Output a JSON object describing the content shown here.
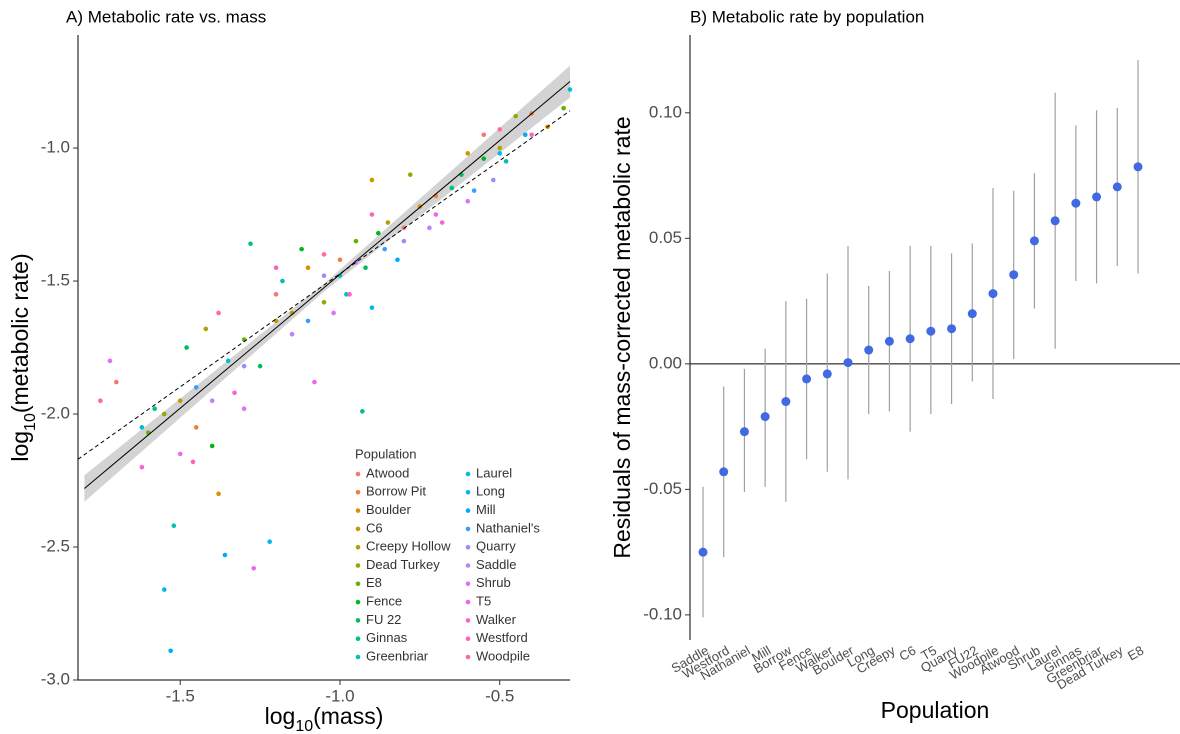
{
  "chart_data": [
    {
      "type": "scatter",
      "title": "A) Metabolic rate vs. mass",
      "xlabel": {
        "base": "log",
        "sub": "10",
        "rest": "(mass)"
      },
      "ylabel": {
        "base": "log",
        "sub": "10",
        "rest": "(metabolic rate)"
      },
      "xlim": [
        -1.82,
        -0.28
      ],
      "ylim": [
        -3.0,
        -0.575
      ],
      "xticks": [
        -1.5,
        {
          "value": -1.0,
          "label": "-1.0"
        },
        -0.5
      ],
      "yticks": [
        {
          "value": -1.0,
          "label": "-1.0"
        },
        -1.5,
        {
          "value": -2.0,
          "label": "-2.0"
        },
        -2.5,
        {
          "value": -3.0,
          "label": "-3.0"
        }
      ],
      "legend_title": "Population",
      "fit_line": {
        "x": [
          -1.8,
          -0.28
        ],
        "y": [
          -2.28,
          -0.75
        ],
        "color": "#000000",
        "dash": false
      },
      "reference_line": {
        "x": [
          -1.82,
          -0.28
        ],
        "y": [
          -2.17,
          -0.86
        ],
        "color": "#000000",
        "dash": true
      },
      "band": {
        "x": [
          -1.8,
          -1.05,
          -0.28
        ],
        "lower": [
          -2.33,
          -1.54,
          -0.81
        ],
        "upper": [
          -2.23,
          -1.51,
          -0.69
        ],
        "color": "#d3d3d3"
      },
      "series": [
        {
          "name": "Atwood",
          "color": "#F8766D",
          "x": [
            -1.7,
            -1.2,
            -0.8,
            -0.55
          ],
          "y": [
            -1.88,
            -1.55,
            -1.3,
            -0.95
          ]
        },
        {
          "name": "Borrow Pit",
          "color": "#EC8239",
          "x": [
            -1.45,
            -1.0,
            -0.7,
            -0.4
          ],
          "y": [
            -2.05,
            -1.42,
            -1.18,
            -0.87
          ]
        },
        {
          "name": "Boulder",
          "color": "#DB8E00",
          "x": [
            -1.38,
            -1.1,
            -0.75,
            -0.35
          ],
          "y": [
            -2.3,
            -1.45,
            -1.22,
            -0.92
          ]
        },
        {
          "name": "C6",
          "color": "#C79800",
          "x": [
            -1.5,
            -1.2,
            -0.9,
            -0.6
          ],
          "y": [
            -1.95,
            -1.65,
            -1.12,
            -1.02
          ]
        },
        {
          "name": "Creepy Hollow",
          "color": "#AEA200",
          "x": [
            -1.42,
            -1.15,
            -0.85,
            -0.5
          ],
          "y": [
            -1.68,
            -1.62,
            -1.28,
            -1.0
          ]
        },
        {
          "name": "Dead Turkey",
          "color": "#8FAA00",
          "x": [
            -1.55,
            -1.05,
            -0.78,
            -0.45
          ],
          "y": [
            -2.0,
            -1.58,
            -1.1,
            -0.88
          ]
        },
        {
          "name": "E8",
          "color": "#64B200",
          "x": [
            -1.6,
            -1.3,
            -0.95,
            -0.3
          ],
          "y": [
            -2.07,
            -1.72,
            -1.35,
            -0.85
          ]
        },
        {
          "name": "Fence",
          "color": "#00B81B",
          "x": [
            -1.4,
            -1.12,
            -0.88,
            -0.55
          ],
          "y": [
            -2.12,
            -1.38,
            -1.32,
            -1.04
          ]
        },
        {
          "name": "FU 22",
          "color": "#00BD5C",
          "x": [
            -1.48,
            -1.25,
            -0.92,
            -0.62
          ],
          "y": [
            -1.75,
            -1.82,
            -1.45,
            -1.1
          ]
        },
        {
          "name": "Ginnas",
          "color": "#00C08B",
          "x": [
            -1.58,
            -1.28,
            -0.93,
            -0.65
          ],
          "y": [
            -1.98,
            -1.36,
            -1.99,
            -1.15
          ]
        },
        {
          "name": "Greenbriar",
          "color": "#00C1B2",
          "x": [
            -1.52,
            -1.18,
            -0.98,
            -0.48
          ],
          "y": [
            -2.42,
            -1.5,
            -1.55,
            -1.05
          ]
        },
        {
          "name": "Laurel",
          "color": "#00BFD5",
          "x": [
            -1.62,
            -1.35,
            -1.0,
            -0.28
          ],
          "y": [
            -2.05,
            -1.8,
            -1.48,
            -0.78
          ]
        },
        {
          "name": "Long",
          "color": "#00B8EF",
          "x": [
            -1.55,
            -1.22,
            -0.9,
            -0.5
          ],
          "y": [
            -2.66,
            -2.48,
            -1.6,
            -1.02
          ]
        },
        {
          "name": "Mill",
          "color": "#00ACFC",
          "x": [
            -1.53,
            -1.36,
            -0.82,
            -0.42
          ],
          "y": [
            -2.89,
            -2.53,
            -1.42,
            -0.95
          ]
        },
        {
          "name": "Nathaniel's",
          "color": "#3A9EFF",
          "x": [
            -1.45,
            -1.1,
            -0.86,
            -0.58
          ],
          "y": [
            -1.9,
            -1.65,
            -1.38,
            -1.16
          ]
        },
        {
          "name": "Quarry",
          "color": "#8F91FF",
          "x": [
            -1.3,
            -1.05,
            -0.8,
            -0.52
          ],
          "y": [
            -1.82,
            -1.48,
            -1.35,
            -1.12
          ]
        },
        {
          "name": "Saddle",
          "color": "#B983FF",
          "x": [
            -1.4,
            -1.15,
            -0.95,
            -0.72
          ],
          "y": [
            -1.95,
            -1.7,
            -1.43,
            -1.3
          ]
        },
        {
          "name": "Shrub",
          "color": "#DB72FB",
          "x": [
            -1.72,
            -1.3,
            -1.02,
            -0.6
          ],
          "y": [
            -1.8,
            -1.98,
            -1.62,
            -1.2
          ]
        },
        {
          "name": "T5",
          "color": "#F066EA",
          "x": [
            -1.5,
            -1.27,
            -1.08,
            -0.7
          ],
          "y": [
            -2.15,
            -2.58,
            -1.88,
            -1.25
          ]
        },
        {
          "name": "Walker",
          "color": "#FC61D3",
          "x": [
            -1.62,
            -1.33,
            -0.97,
            -0.68
          ],
          "y": [
            -2.2,
            -1.92,
            -1.55,
            -1.28
          ]
        },
        {
          "name": "Westford",
          "color": "#FF63B6",
          "x": [
            -1.46,
            -1.2,
            -0.9,
            -0.4
          ],
          "y": [
            -2.18,
            -1.45,
            -1.25,
            -0.95
          ]
        },
        {
          "name": "Woodpile",
          "color": "#FF6B96",
          "x": [
            -1.75,
            -1.38,
            -1.05,
            -0.5
          ],
          "y": [
            -1.95,
            -1.62,
            -1.4,
            -0.93
          ]
        }
      ]
    },
    {
      "type": "errorbar",
      "title": "B) Metabolic rate by population",
      "xlabel": "Population",
      "ylabel": "Residuals of mass-corrected metabolic rate",
      "ylim": [
        -0.11,
        0.131
      ],
      "yticks": [
        {
          "value": -0.1,
          "label": "-0.10"
        },
        {
          "value": -0.05,
          "label": "-0.05"
        },
        {
          "value": 0,
          "label": "0.00"
        },
        {
          "value": 0.05,
          "label": "0.05"
        },
        {
          "value": 0.1,
          "label": "0.10"
        }
      ],
      "reference_line": 0,
      "color": "#4169E1",
      "error_color": "#a0a0a0",
      "categories": [
        "Saddle",
        "Westford",
        "Nathaniel",
        "Mill",
        "Borrow",
        "Fence",
        "Walker",
        "Boulder",
        "Long",
        "Creepy",
        "C6",
        "T5",
        "Quarry",
        "FU22",
        "Woodpile",
        "Atwood",
        "Shrub",
        "Laurel",
        "Ginnas",
        "Greenbriar",
        "Dead Turkey",
        "E8"
      ],
      "values": [
        -0.075,
        -0.043,
        -0.027,
        -0.021,
        -0.015,
        -0.006,
        -0.004,
        0.0005,
        0.0055,
        0.009,
        0.01,
        0.013,
        0.014,
        0.02,
        0.028,
        0.0355,
        0.049,
        0.057,
        0.064,
        0.0665,
        0.0705,
        0.0785
      ],
      "lower": [
        -0.101,
        -0.077,
        -0.051,
        -0.049,
        -0.055,
        -0.038,
        -0.043,
        -0.046,
        -0.02,
        -0.019,
        -0.027,
        -0.02,
        -0.016,
        -0.007,
        -0.014,
        0.002,
        0.022,
        0.006,
        0.033,
        0.032,
        0.039,
        0.036
      ],
      "upper": [
        -0.049,
        -0.009,
        -0.002,
        0.006,
        0.025,
        0.026,
        0.036,
        0.047,
        0.031,
        0.037,
        0.047,
        0.047,
        0.044,
        0.048,
        0.07,
        0.069,
        0.076,
        0.108,
        0.095,
        0.101,
        0.102,
        0.121
      ]
    }
  ]
}
